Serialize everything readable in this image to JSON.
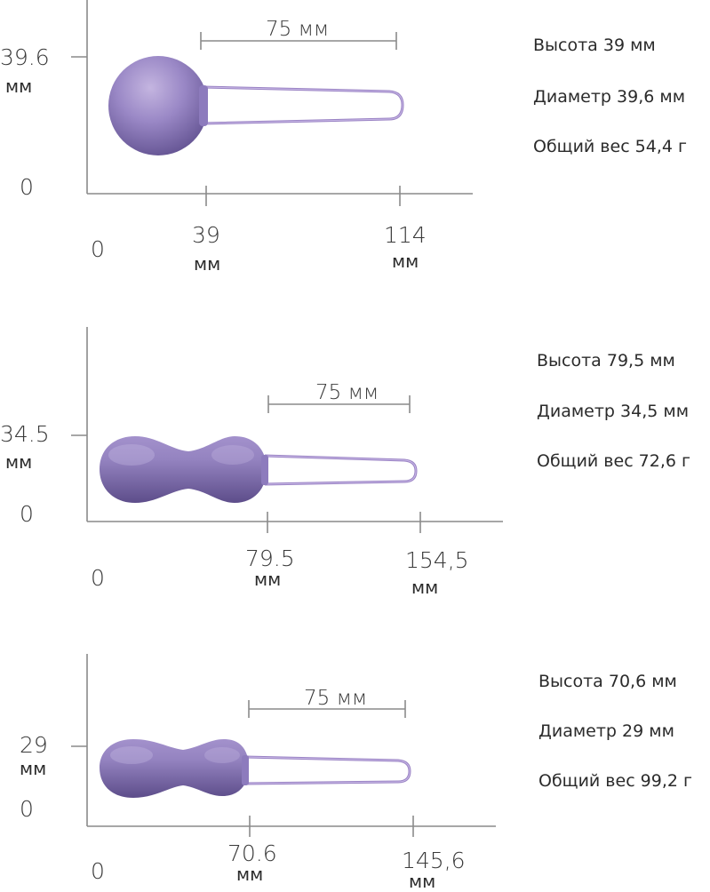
{
  "products": [
    {
      "y_tick_value": "39.6",
      "y_tick_unit": "мм",
      "y_zero": "0",
      "x_zero": "0",
      "x_tick1_value": "39",
      "x_tick1_unit": "мм",
      "x_tick2_value": "114",
      "x_tick2_unit": "мм",
      "dimension_label": "75 мм",
      "specs": [
        "Высота 39 мм",
        "Диаметр 39,6 мм",
        "Общий вес 54,4 г"
      ]
    },
    {
      "y_tick_value": "34.5",
      "y_tick_unit": "мм",
      "y_zero": "0",
      "x_zero": "0",
      "x_tick1_value": "79.5",
      "x_tick1_unit": "мм",
      "x_tick2_value": "154,5",
      "x_tick2_unit": "мм",
      "dimension_label": "75 мм",
      "specs": [
        "Высота 79,5 мм",
        "Диаметр 34,5 мм",
        "Общий вес 72,6 г"
      ]
    },
    {
      "y_tick_value": "29",
      "y_tick_unit": "мм",
      "y_zero": "0",
      "x_zero": "0",
      "x_tick1_value": "70.6",
      "x_tick1_unit": "мм",
      "x_tick2_value": "145,6",
      "x_tick2_unit": "мм",
      "dimension_label": "75 мм",
      "specs": [
        "Высота 70,6 мм",
        "Диаметр 29 мм",
        "Общий вес 99,2 г"
      ]
    }
  ],
  "colors": {
    "product_light": "#b7a6d6",
    "product_mid": "#8b78b8",
    "product_dark": "#5e4c8c",
    "loop": "#9a83c4",
    "axis": "#8a8a8a"
  }
}
